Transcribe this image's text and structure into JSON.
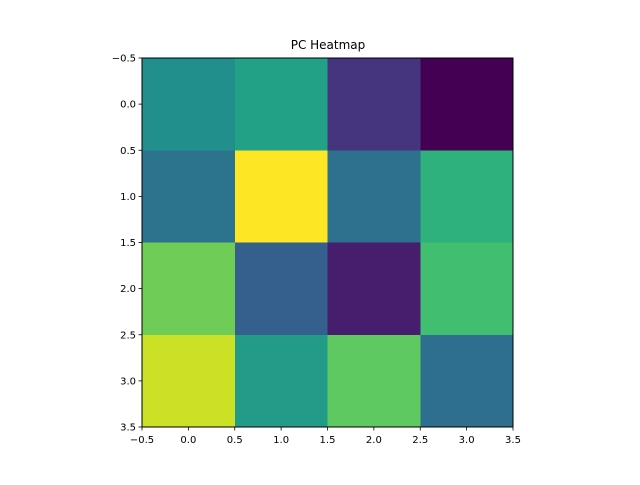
{
  "chart_data": {
    "type": "heatmap",
    "title": "PC Heatmap",
    "xlabel": "",
    "ylabel": "",
    "xlim": [
      -0.5,
      3.5
    ],
    "ylim": [
      3.5,
      -0.5
    ],
    "grid": false,
    "colormap": "viridis",
    "x_ticks": [
      "−0.5",
      "0.0",
      "0.5",
      "1.0",
      "1.5",
      "2.0",
      "2.5",
      "3.0",
      "3.5"
    ],
    "y_ticks": [
      "−0.5",
      "0.0",
      "0.5",
      "1.0",
      "1.5",
      "2.0",
      "2.5",
      "3.0",
      "3.5"
    ],
    "x_tick_values": [
      -0.5,
      0.0,
      0.5,
      1.0,
      1.5,
      2.0,
      2.5,
      3.0,
      3.5
    ],
    "y_tick_values": [
      -0.5,
      0.0,
      0.5,
      1.0,
      1.5,
      2.0,
      2.5,
      3.0,
      3.5
    ],
    "values": [
      [
        0.5,
        0.57,
        0.15,
        0.0
      ],
      [
        0.38,
        1.0,
        0.37,
        0.64
      ],
      [
        0.78,
        0.3,
        0.08,
        0.7
      ],
      [
        0.92,
        0.55,
        0.75,
        0.36
      ]
    ]
  }
}
